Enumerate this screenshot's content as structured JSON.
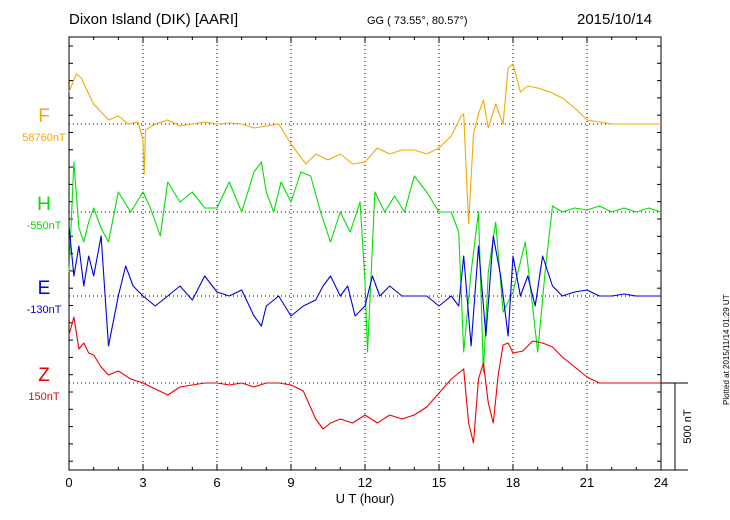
{
  "header": {
    "station": "Dixon Island (DIK)  [AARI]",
    "coords": "GG ( 73.55°,  80.57°)",
    "date": "2015/10/14"
  },
  "footer": {
    "plotted": "Plotted at 2015/11/14 01:29 UT"
  },
  "chart_data": {
    "type": "line",
    "title": "Dixon Island (DIK)  [AARI]",
    "xlabel": "U T (hour)",
    "xlim": [
      0,
      24
    ],
    "x_ticks": [
      0,
      3,
      6,
      9,
      12,
      15,
      18,
      21,
      24
    ],
    "grid": true,
    "scale_bar": {
      "label": "500 nT",
      "value_nT": 500
    },
    "series": [
      {
        "name": "F",
        "baseline_label": "58760nT",
        "color": "#f5a800",
        "x": [
          0,
          0.3,
          0.5,
          0.8,
          1.0,
          1.3,
          1.6,
          2.0,
          2.4,
          2.8,
          3.0,
          3.05,
          3.1,
          3.5,
          4.0,
          4.5,
          5.0,
          5.5,
          6.0,
          6.5,
          7.0,
          7.5,
          8.0,
          8.5,
          9.0,
          9.3,
          9.6,
          10.0,
          10.5,
          11.0,
          11.5,
          12.0,
          12.5,
          13.0,
          13.5,
          14.0,
          14.5,
          15.0,
          15.5,
          15.9,
          16.0,
          16.2,
          16.4,
          16.6,
          16.8,
          17.0,
          17.3,
          17.6,
          17.8,
          18.0,
          18.3,
          18.6,
          19.0,
          19.5,
          20.0,
          20.5,
          21.0,
          21.5,
          22.0,
          22.5,
          23.0,
          23.5,
          24.0
        ],
        "y": [
          160,
          250,
          230,
          150,
          100,
          60,
          20,
          40,
          0,
          10,
          -80,
          -250,
          -30,
          0,
          20,
          -10,
          0,
          10,
          0,
          5,
          0,
          -20,
          -10,
          0,
          -100,
          -150,
          -200,
          -150,
          -180,
          -150,
          -200,
          -190,
          -120,
          -150,
          -130,
          -130,
          -150,
          -120,
          -60,
          40,
          50,
          -500,
          -50,
          50,
          120,
          -20,
          100,
          0,
          280,
          300,
          160,
          190,
          180,
          160,
          130,
          80,
          20,
          10,
          0,
          0,
          0,
          0,
          0
        ]
      },
      {
        "name": "H",
        "baseline_label": "-550nT",
        "color": "#00e000",
        "x": [
          0,
          0.2,
          0.4,
          0.6,
          0.8,
          1.0,
          1.3,
          1.6,
          2.0,
          2.5,
          3.0,
          3.3,
          3.7,
          4.0,
          4.5,
          5.0,
          5.5,
          6.0,
          6.5,
          7.0,
          7.5,
          7.8,
          8.0,
          8.3,
          8.6,
          9.0,
          9.4,
          9.8,
          10.2,
          10.6,
          11.0,
          11.4,
          11.8,
          12.0,
          12.1,
          12.4,
          12.8,
          13.2,
          13.6,
          14.0,
          14.5,
          15.0,
          15.5,
          15.8,
          16.0,
          16.3,
          16.6,
          16.8,
          17.0,
          17.3,
          17.6,
          18.0,
          18.5,
          19.0,
          19.3,
          19.6,
          20.0,
          20.5,
          21.0,
          21.5,
          22.0,
          22.5,
          23.0,
          23.5,
          24.0
        ],
        "y": [
          -300,
          250,
          -80,
          -150,
          -50,
          20,
          -80,
          -150,
          100,
          0,
          100,
          20,
          -120,
          150,
          50,
          100,
          20,
          20,
          150,
          0,
          200,
          250,
          100,
          0,
          150,
          50,
          200,
          180,
          0,
          -150,
          0,
          -100,
          50,
          -350,
          -700,
          100,
          0,
          80,
          0,
          180,
          100,
          0,
          0,
          -100,
          -700,
          -300,
          0,
          -800,
          -300,
          -50,
          -500,
          -400,
          -150,
          -700,
          -300,
          30,
          0,
          20,
          10,
          30,
          0,
          20,
          0,
          20,
          0
        ]
      },
      {
        "name": "E",
        "baseline_label": "-130nT",
        "color": "#0000dd",
        "x": [
          0,
          0.2,
          0.4,
          0.6,
          0.8,
          1.0,
          1.3,
          1.6,
          2.0,
          2.3,
          2.6,
          3.0,
          3.5,
          4.0,
          4.5,
          5.0,
          5.5,
          6.0,
          6.5,
          7.0,
          7.5,
          7.8,
          8.0,
          8.5,
          9.0,
          9.5,
          10.0,
          10.3,
          10.6,
          11.0,
          11.3,
          11.6,
          12.0,
          12.3,
          12.6,
          13.0,
          13.5,
          14.0,
          14.5,
          15.0,
          15.5,
          15.8,
          16.0,
          16.3,
          16.6,
          16.9,
          17.2,
          17.5,
          17.8,
          18.0,
          18.3,
          18.6,
          18.9,
          19.2,
          19.6,
          20.0,
          20.5,
          21.0,
          21.5,
          22.0,
          22.5,
          23.0,
          23.5,
          24.0
        ],
        "y": [
          350,
          100,
          250,
          50,
          200,
          100,
          300,
          -250,
          0,
          150,
          50,
          0,
          -50,
          0,
          50,
          -20,
          100,
          20,
          0,
          30,
          -100,
          -150,
          -50,
          0,
          -100,
          -50,
          -20,
          50,
          100,
          0,
          50,
          -100,
          -50,
          100,
          0,
          50,
          0,
          0,
          0,
          -50,
          0,
          -50,
          200,
          -250,
          250,
          -200,
          300,
          100,
          -200,
          200,
          0,
          100,
          -50,
          200,
          50,
          0,
          20,
          30,
          0,
          0,
          10,
          0,
          0,
          0
        ]
      },
      {
        "name": "Z",
        "baseline_label": "150nT",
        "color": "#ee0000",
        "x": [
          0,
          0.2,
          0.4,
          0.6,
          0.8,
          1.0,
          1.3,
          1.6,
          2.0,
          2.5,
          3.0,
          3.5,
          4.0,
          4.5,
          5.0,
          5.5,
          6.0,
          6.5,
          7.0,
          7.5,
          8.0,
          8.5,
          9.0,
          9.5,
          10.0,
          10.3,
          10.6,
          11.0,
          11.5,
          12.0,
          12.5,
          13.0,
          13.5,
          14.0,
          14.5,
          15.0,
          15.5,
          15.9,
          16.0,
          16.2,
          16.4,
          16.6,
          16.8,
          17.0,
          17.2,
          17.4,
          17.6,
          17.8,
          18.0,
          18.4,
          18.8,
          19.2,
          19.6,
          20.0,
          20.5,
          21.0,
          21.5,
          22.0,
          22.5,
          23.0,
          23.5,
          24.0
        ],
        "y": [
          240,
          330,
          170,
          200,
          150,
          140,
          80,
          40,
          60,
          20,
          0,
          -30,
          -60,
          -20,
          -10,
          0,
          0,
          -10,
          0,
          -20,
          0,
          0,
          -10,
          -40,
          -180,
          -230,
          -200,
          -180,
          -200,
          -160,
          -200,
          -160,
          -180,
          -160,
          -120,
          -50,
          20,
          60,
          70,
          -200,
          -300,
          20,
          100,
          -100,
          -200,
          40,
          190,
          200,
          150,
          160,
          210,
          200,
          180,
          130,
          80,
          30,
          0,
          0,
          0,
          0,
          0,
          0
        ]
      }
    ]
  }
}
